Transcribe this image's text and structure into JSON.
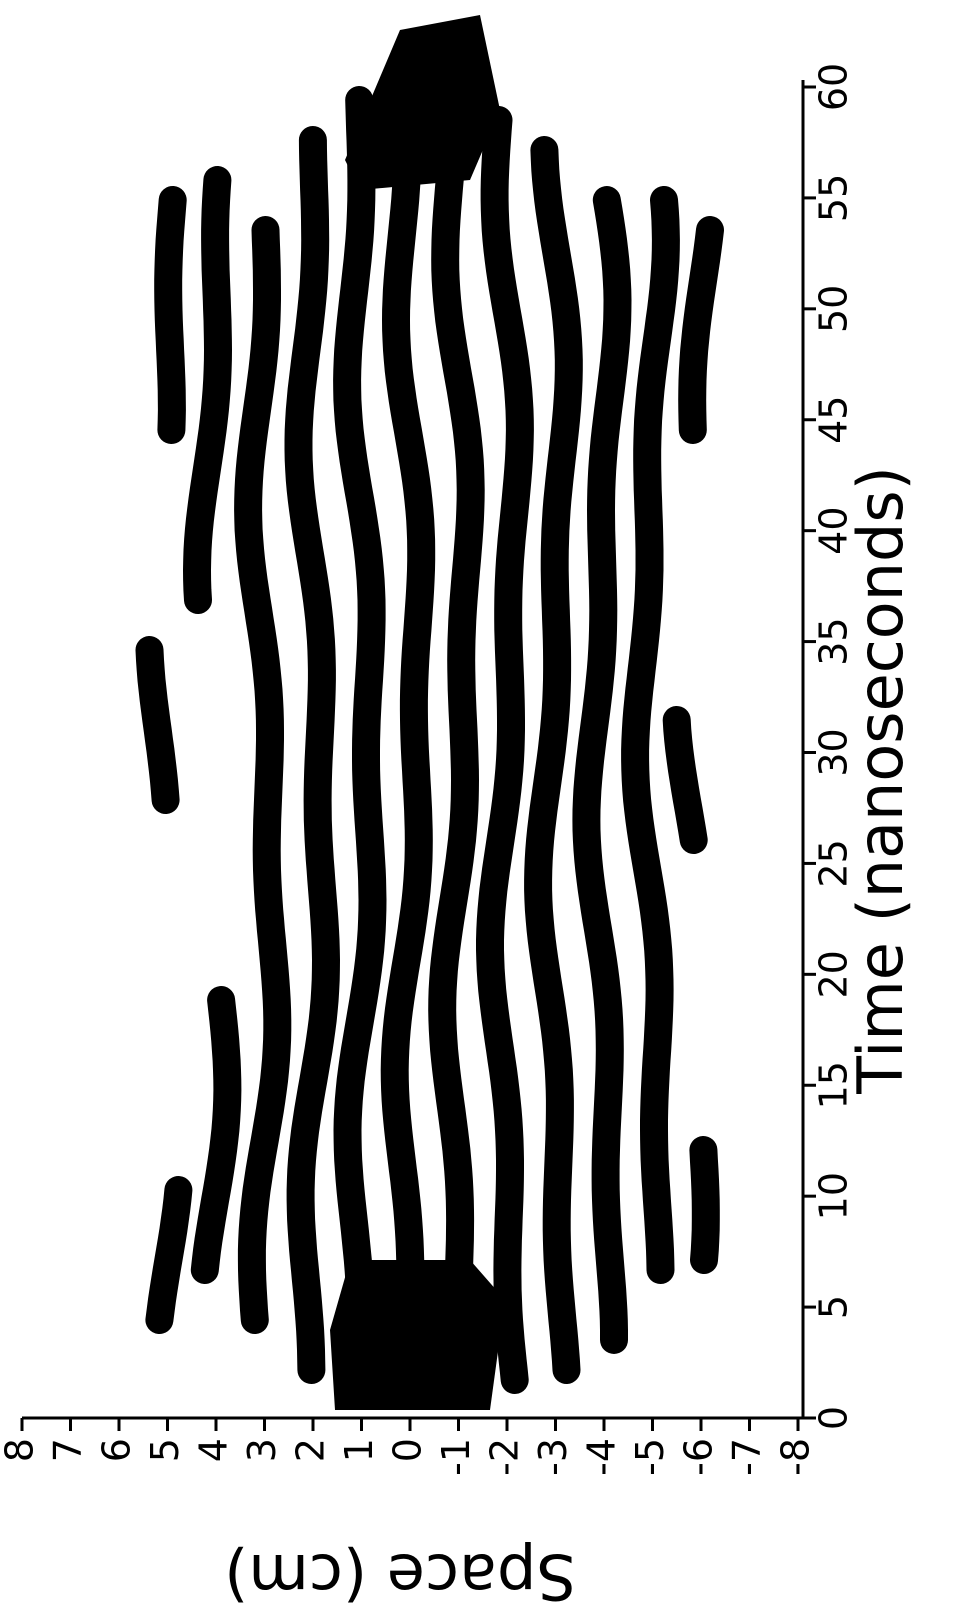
{
  "chart_data": {
    "type": "image",
    "xlabel": "Time (nanoseconds)",
    "ylabel": "Space (cm)",
    "xlim": [
      0,
      60
    ],
    "xticks": [
      0,
      5,
      10,
      15,
      20,
      25,
      30,
      35,
      40,
      45,
      50,
      55,
      60
    ],
    "ylim": [
      -8,
      8
    ],
    "yticks": [
      8,
      7,
      6,
      5,
      4,
      3,
      2,
      1,
      0,
      -1,
      -2,
      -3,
      -4,
      -5,
      -6,
      -7,
      -8
    ]
  }
}
